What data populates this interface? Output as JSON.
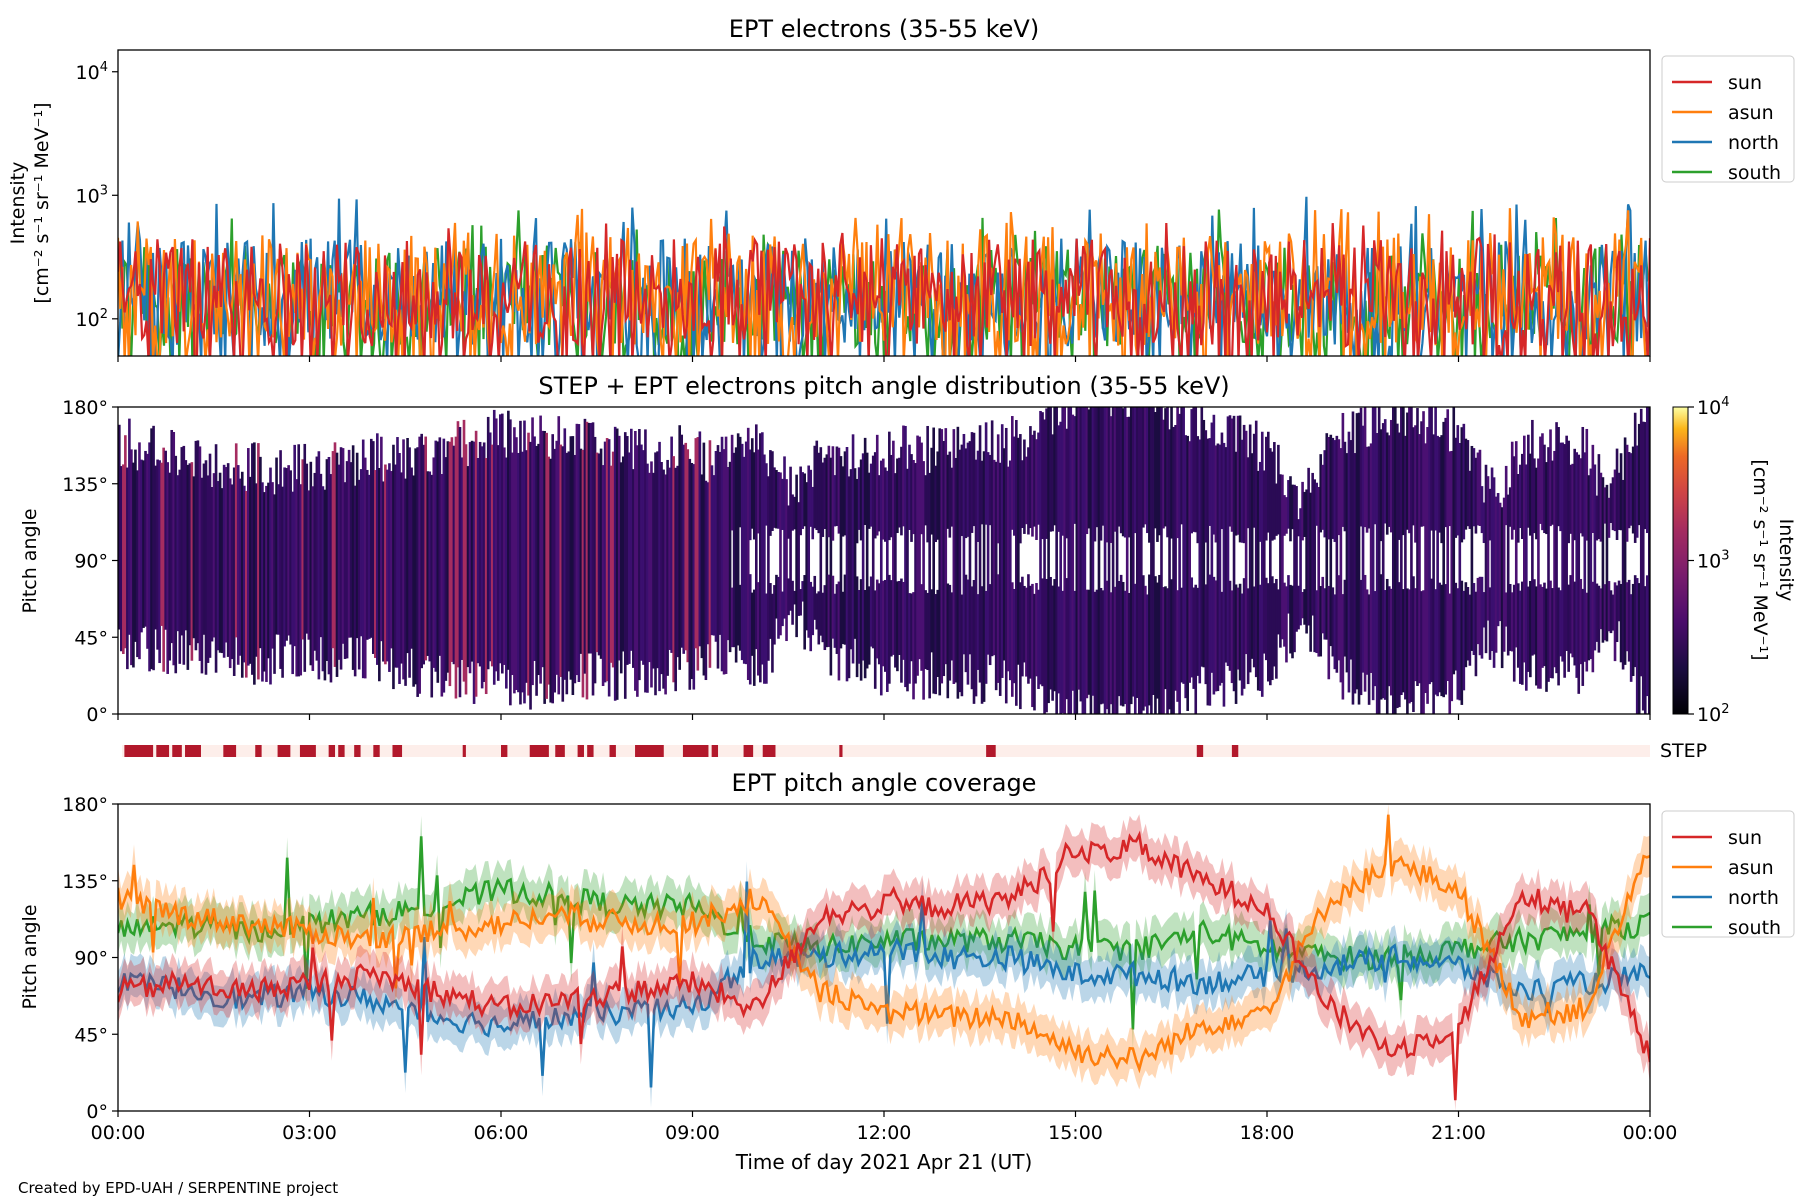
{
  "figure": {
    "credit": "Created by EPD-UAH / SERPENTINE project",
    "colors": {
      "sun": "#d62728",
      "asun": "#ff7f0e",
      "north": "#1f77b4",
      "south": "#2ca02c",
      "step_on": "#b2182b",
      "step_off": "#fdeeea"
    }
  },
  "chart_data": [
    {
      "id": "intensity",
      "type": "line",
      "title": "EPT electrons (35-55 keV)",
      "ylabel": [
        "Intensity",
        "[cm⁻² s⁻¹ sr⁻¹ MeV⁻¹]"
      ],
      "yscale": "log",
      "ylim": [
        50,
        15000
      ],
      "yticks": [
        {
          "value": 100,
          "base": "10",
          "exp": "2"
        },
        {
          "value": 1000,
          "base": "10",
          "exp": "3"
        },
        {
          "value": 10000,
          "base": "10",
          "exp": "4"
        }
      ],
      "xlim": [
        0,
        24
      ],
      "legend": {
        "placement": "outside-right-top",
        "entries": [
          "sun",
          "asun",
          "north",
          "south"
        ]
      },
      "series": [
        {
          "name": "sun",
          "color": "#d62728",
          "typical_range": [
            60,
            450
          ],
          "peak": 600
        },
        {
          "name": "asun",
          "color": "#ff7f0e",
          "typical_range": [
            60,
            500
          ],
          "peak": 800
        },
        {
          "name": "north",
          "color": "#1f77b4",
          "typical_range": [
            60,
            450
          ],
          "peak": 1000
        },
        {
          "name": "south",
          "color": "#2ca02c",
          "typical_range": [
            60,
            400
          ],
          "peak": 800
        }
      ]
    },
    {
      "id": "pad",
      "type": "heatmap",
      "title": "STEP + EPT electrons pitch angle distribution (35-55 keV)",
      "ylabel": "Pitch angle",
      "ylim": [
        0,
        180
      ],
      "yticks": [
        "0°",
        "45°",
        "90°",
        "135°",
        "180°"
      ],
      "xlim": [
        0,
        24
      ],
      "colorbar": {
        "label": [
          "Intensity",
          "[cm⁻² s⁻¹ sr⁻¹ MeV⁻¹]"
        ],
        "scale": "log",
        "range": [
          100,
          10000
        ],
        "ticks": [
          {
            "value": 100,
            "base": "10",
            "exp": "2"
          },
          {
            "value": 1000,
            "base": "10",
            "exp": "3"
          },
          {
            "value": 10000,
            "base": "10",
            "exp": "4"
          }
        ],
        "colormap": "inferno"
      }
    },
    {
      "id": "step",
      "type": "bar",
      "label": "STEP",
      "xlim": [
        0,
        24
      ],
      "intervals_hours": [
        [
          0.1,
          0.55
        ],
        [
          0.6,
          0.8
        ],
        [
          0.85,
          1.0
        ],
        [
          1.05,
          1.3
        ],
        [
          1.65,
          1.85
        ],
        [
          2.15,
          2.25
        ],
        [
          2.5,
          2.7
        ],
        [
          2.85,
          3.1
        ],
        [
          3.3,
          3.4
        ],
        [
          3.45,
          3.55
        ],
        [
          3.7,
          3.8
        ],
        [
          4.0,
          4.1
        ],
        [
          4.3,
          4.45
        ],
        [
          5.4,
          5.45
        ],
        [
          6.0,
          6.1
        ],
        [
          6.45,
          6.75
        ],
        [
          6.85,
          7.0
        ],
        [
          7.2,
          7.3
        ],
        [
          7.35,
          7.45
        ],
        [
          7.7,
          7.8
        ],
        [
          8.1,
          8.55
        ],
        [
          8.85,
          9.25
        ],
        [
          9.3,
          9.4
        ],
        [
          9.8,
          9.95
        ],
        [
          10.1,
          10.3
        ],
        [
          11.3,
          11.35
        ],
        [
          13.6,
          13.75
        ],
        [
          16.9,
          17.0
        ],
        [
          17.45,
          17.55
        ]
      ]
    },
    {
      "id": "coverage",
      "type": "line",
      "title": "EPT pitch angle coverage",
      "ylabel": "Pitch angle",
      "xlabel": "Time of day 2021 Apr 21 (UT)",
      "ylim": [
        0,
        180
      ],
      "yticks": [
        "0°",
        "45°",
        "90°",
        "135°",
        "180°"
      ],
      "xlim": [
        0,
        24
      ],
      "xticks": [
        "00:00",
        "03:00",
        "06:00",
        "09:00",
        "12:00",
        "15:00",
        "18:00",
        "21:00",
        "00:00"
      ],
      "legend": {
        "placement": "outside-right-top",
        "entries": [
          "sun",
          "asun",
          "north",
          "south"
        ]
      },
      "band_halfwidth_deg": 12,
      "series": [
        {
          "name": "sun",
          "color": "#d62728",
          "x": [
            0,
            1,
            2,
            3,
            4,
            5,
            6,
            7,
            8,
            9,
            10,
            11,
            12,
            13,
            14,
            15,
            16,
            17,
            18,
            19,
            20,
            21,
            22,
            23,
            24
          ],
          "y": [
            70,
            75,
            70,
            75,
            80,
            70,
            60,
            65,
            70,
            75,
            60,
            115,
            120,
            120,
            125,
            150,
            155,
            135,
            120,
            60,
            35,
            50,
            125,
            120,
            30
          ]
        },
        {
          "name": "asun",
          "color": "#ff7f0e",
          "x": [
            0,
            1,
            2,
            3,
            4,
            5,
            6,
            7,
            8,
            9,
            10,
            11,
            12,
            13,
            14,
            15,
            16,
            17,
            18,
            19,
            20,
            21,
            22,
            23,
            24
          ],
          "y": [
            125,
            115,
            110,
            105,
            100,
            105,
            110,
            115,
            110,
            110,
            125,
            70,
            60,
            55,
            55,
            35,
            30,
            50,
            60,
            125,
            145,
            130,
            55,
            60,
            155
          ]
        },
        {
          "name": "north",
          "color": "#1f77b4",
          "x": [
            0,
            1,
            2,
            3,
            4,
            5,
            6,
            7,
            8,
            9,
            10,
            11,
            12,
            13,
            14,
            15,
            16,
            17,
            18,
            19,
            20,
            21,
            22,
            23,
            24
          ],
          "y": [
            75,
            72,
            65,
            70,
            65,
            55,
            50,
            55,
            58,
            60,
            90,
            90,
            95,
            90,
            90,
            80,
            80,
            75,
            80,
            85,
            90,
            85,
            70,
            75,
            80
          ]
        },
        {
          "name": "south",
          "color": "#2ca02c",
          "x": [
            0,
            1,
            2,
            3,
            4,
            5,
            6,
            7,
            8,
            9,
            10,
            11,
            12,
            13,
            14,
            15,
            16,
            17,
            18,
            19,
            20,
            21,
            22,
            23,
            24
          ],
          "y": [
            105,
            110,
            105,
            110,
            115,
            120,
            130,
            125,
            120,
            120,
            100,
            95,
            100,
            100,
            100,
            95,
            95,
            105,
            95,
            90,
            90,
            95,
            100,
            105,
            110
          ]
        }
      ]
    }
  ]
}
